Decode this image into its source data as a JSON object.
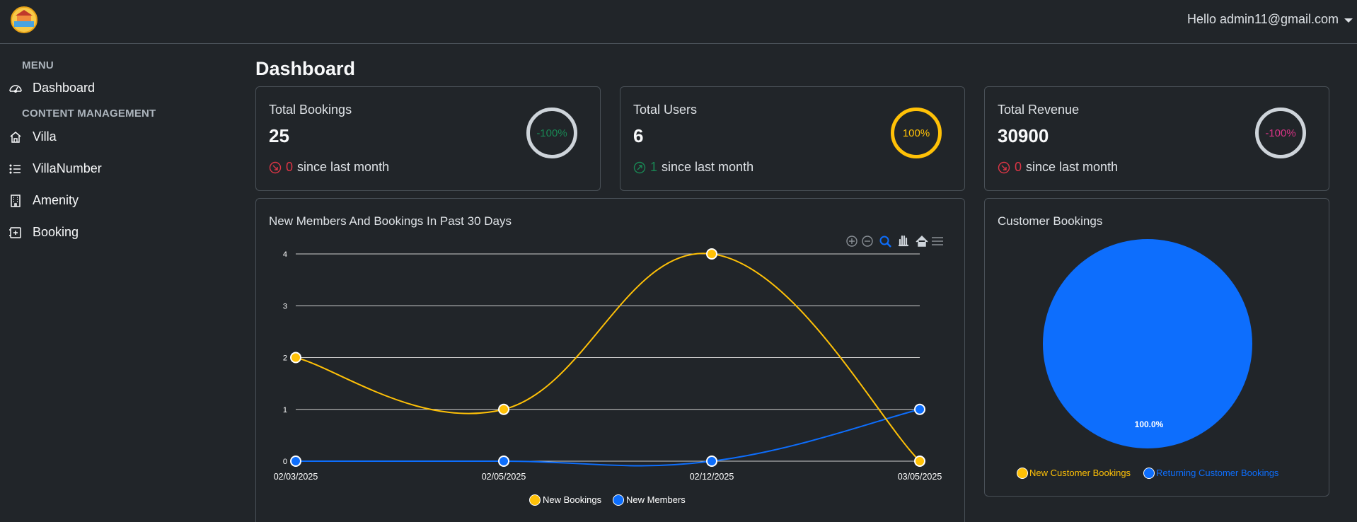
{
  "header": {
    "user_greeting": "Hello admin11@gmail.com"
  },
  "sidebar": {
    "menu_heading": "MENU",
    "content_heading": "CONTENT MANAGEMENT",
    "items": [
      {
        "label": "Dashboard",
        "icon": "speedometer-icon"
      },
      {
        "label": "Villa",
        "icon": "house-icon"
      },
      {
        "label": "VillaNumber",
        "icon": "list-icon"
      },
      {
        "label": "Amenity",
        "icon": "building-icon"
      },
      {
        "label": "Booking",
        "icon": "calendar-plus-icon"
      }
    ]
  },
  "page": {
    "title": "Dashboard"
  },
  "stats": [
    {
      "label": "Total Bookings",
      "value": "25",
      "change": "0",
      "change_suffix": "since last month",
      "percent": "-100%",
      "trend": "down"
    },
    {
      "label": "Total Users",
      "value": "6",
      "change": "1",
      "change_suffix": "since last month",
      "percent": "100%",
      "trend": "up"
    },
    {
      "label": "Total Revenue",
      "value": "30900",
      "change": "0",
      "change_suffix": "since last month",
      "percent": "-100%",
      "trend": "down"
    }
  ],
  "line_chart_card": {
    "title": "New Members And Bookings In Past 30 Days"
  },
  "pie_chart_card": {
    "title": "Customer Bookings"
  },
  "colors": {
    "yellow": "#ffc107",
    "blue": "#0d6efd",
    "green": "#198754",
    "red": "#dc3545",
    "pink": "#d63384"
  },
  "chart_data": [
    {
      "type": "line",
      "title": "New Members And Bookings In Past 30 Days",
      "categories": [
        "02/03/2025",
        "02/05/2025",
        "02/12/2025",
        "03/05/2025"
      ],
      "ylim": [
        0,
        4
      ],
      "yticks": [
        "0",
        "1",
        "2",
        "3",
        "4"
      ],
      "grid": true,
      "legend": "bottom",
      "series": [
        {
          "name": "New Bookings",
          "values": [
            2,
            1,
            4,
            0
          ],
          "color": "#ffc107"
        },
        {
          "name": "New Members",
          "values": [
            0,
            0,
            0,
            1
          ],
          "color": "#0d6efd"
        }
      ]
    },
    {
      "type": "pie",
      "title": "Customer Bookings",
      "legend": "bottom",
      "slices": [
        {
          "name": "New Customer Bookings",
          "value": 0,
          "color": "#ffc107"
        },
        {
          "name": "Returning Customer Bookings",
          "value": 100,
          "color": "#0d6efd"
        }
      ],
      "data_labels": [
        "100.0%"
      ]
    }
  ]
}
